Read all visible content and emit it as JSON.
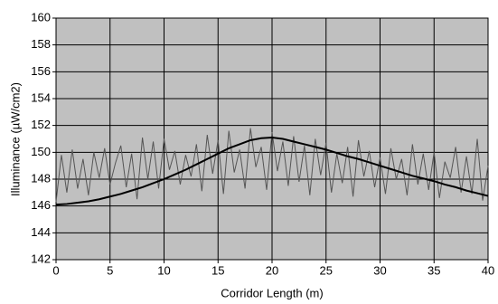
{
  "chart_data": {
    "type": "line",
    "x_label": "Corridor Length (m)",
    "y_label": "Illuminance (µW/cm2)",
    "xlim": [
      0,
      40
    ],
    "xticks": [
      0,
      5,
      10,
      15,
      20,
      25,
      30,
      35,
      40
    ],
    "ylim": [
      142,
      160
    ],
    "yticks": [
      142,
      144,
      146,
      148,
      150,
      152,
      154,
      156,
      158,
      160
    ],
    "grid": true,
    "background": "#c0c0c0",
    "series": [
      {
        "color": "#555555",
        "x": [
          0,
          0.5,
          1,
          1.5,
          2,
          2.5,
          3,
          3.5,
          4,
          4.5,
          5,
          5.5,
          6,
          6.5,
          7,
          7.5,
          8,
          8.5,
          9,
          9.5,
          10,
          10.5,
          11,
          11.5,
          12,
          12.5,
          13,
          13.5,
          14,
          14.5,
          15,
          15.5,
          16,
          16.5,
          17,
          17.5,
          18,
          18.5,
          19,
          19.5,
          20,
          20.5,
          21,
          21.5,
          22,
          22.5,
          23,
          23.5,
          24,
          24.5,
          25,
          25.5,
          26,
          26.5,
          27,
          27.5,
          28,
          28.5,
          29,
          29.5,
          30,
          30.5,
          31,
          31.5,
          32,
          32.5,
          33,
          33.5,
          34,
          34.5,
          35,
          35.5,
          36,
          36.5,
          37,
          37.5,
          38,
          38.5,
          39,
          39.5,
          40
        ],
        "values": [
          146.3,
          149.8,
          147.0,
          150.2,
          147.3,
          149.5,
          146.8,
          150.0,
          148.1,
          150.3,
          147.6,
          149.2,
          150.5,
          147.4,
          149.9,
          146.5,
          151.1,
          148.0,
          150.8,
          147.3,
          151.0,
          148.7,
          150.1,
          147.6,
          149.8,
          148.2,
          150.6,
          147.1,
          151.3,
          148.4,
          150.9,
          146.9,
          151.6,
          148.5,
          150.2,
          147.3,
          151.8,
          148.9,
          150.4,
          147.2,
          151.5,
          148.6,
          150.8,
          147.5,
          151.2,
          147.8,
          150.5,
          146.8,
          151.0,
          148.3,
          150.7,
          147.0,
          149.9,
          147.7,
          150.4,
          146.7,
          150.9,
          148.2,
          150.1,
          147.4,
          149.6,
          146.9,
          150.3,
          148.0,
          149.5,
          146.8,
          150.6,
          147.6,
          149.9,
          147.2,
          150.0,
          146.6,
          149.3,
          148.1,
          150.4,
          147.0,
          149.7,
          146.9,
          151.0,
          146.4,
          149.0
        ]
      },
      {
        "color": "#000000",
        "x": [
          0,
          1,
          2,
          3,
          4,
          5,
          6,
          7,
          8,
          9,
          10,
          11,
          12,
          13,
          14,
          15,
          16,
          17,
          18,
          19,
          20,
          21,
          22,
          23,
          24,
          25,
          26,
          27,
          28,
          29,
          30,
          31,
          32,
          33,
          34,
          35,
          36,
          37,
          38,
          39,
          40
        ],
        "values": [
          146.1,
          146.15,
          146.25,
          146.35,
          146.5,
          146.7,
          146.9,
          147.15,
          147.4,
          147.7,
          148.0,
          148.35,
          148.7,
          149.1,
          149.5,
          149.9,
          150.3,
          150.6,
          150.9,
          151.05,
          151.1,
          151.0,
          150.8,
          150.6,
          150.4,
          150.2,
          149.95,
          149.7,
          149.5,
          149.25,
          149.0,
          148.75,
          148.5,
          148.25,
          148.05,
          147.85,
          147.6,
          147.4,
          147.15,
          146.95,
          146.75
        ]
      }
    ]
  }
}
